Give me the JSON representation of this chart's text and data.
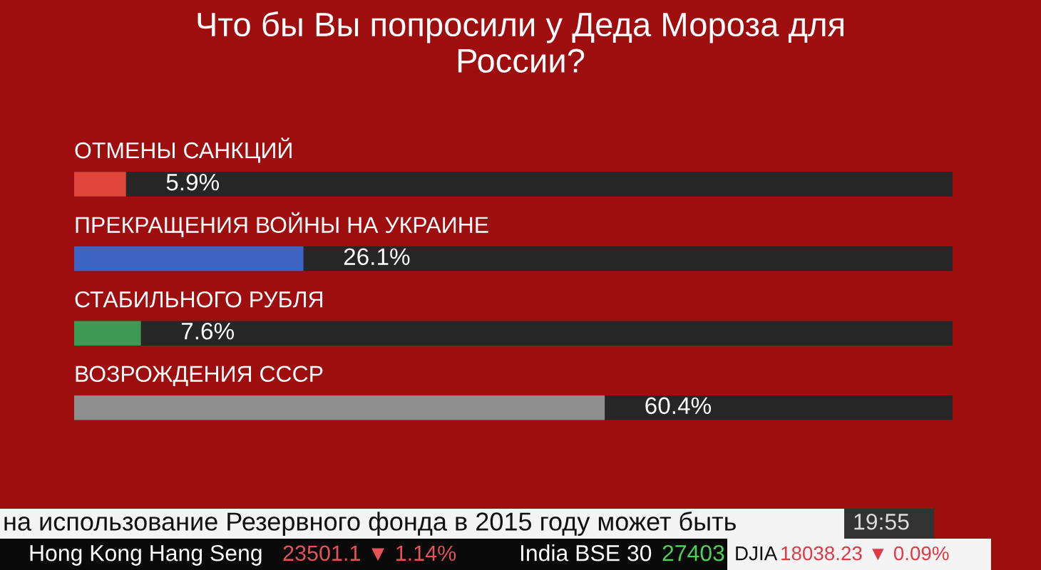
{
  "chart_data": {
    "type": "bar",
    "orientation": "horizontal",
    "title": "Что бы Вы попросили у Деда Мороза для России?",
    "categories": [
      "ОТМЕНЫ САНКЦИЙ",
      "ПРЕКРАЩЕНИЯ ВОЙНЫ НА УКРАИНЕ",
      "СТАБИЛЬНОГО РУБЛЯ",
      "ВОЗРОЖДЕНИЯ СССР"
    ],
    "values": [
      5.9,
      26.1,
      7.6,
      60.4
    ],
    "colors": [
      "#e0463c",
      "#3d63c4",
      "#3e9a52",
      "#8e8e8e"
    ],
    "value_labels": [
      "5.9%",
      "26.1%",
      "7.6%",
      "60.4%"
    ],
    "xlim": [
      0,
      100
    ],
    "annotations": [
      "на использование Резервного фонда в 2015 году может быть",
      "19:55",
      "Hong Kong Hang Seng",
      "23501.1 ▼ 1.14%",
      "India BSE 30",
      "27403",
      "DJIA",
      "18038.23 ▼ 0.09%"
    ]
  }
}
